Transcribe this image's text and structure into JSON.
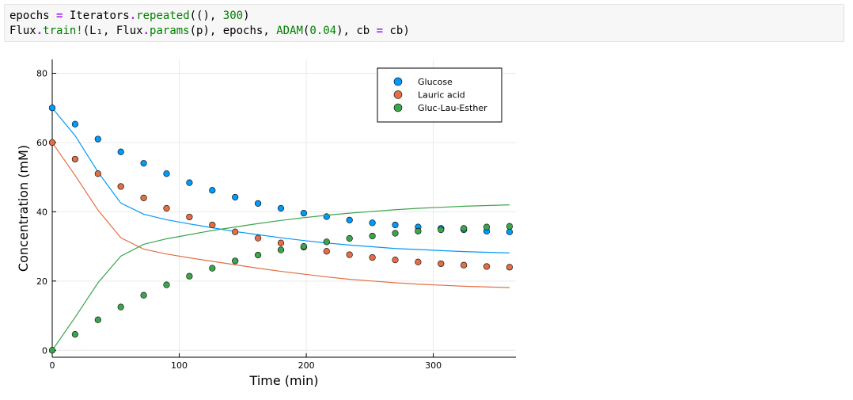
{
  "code_cell": {
    "lines": [
      [
        {
          "t": "epochs ",
          "c": ""
        },
        {
          "t": "=",
          "c": "tok-op"
        },
        {
          "t": " Iterators",
          "c": ""
        },
        {
          "t": ".",
          "c": "tok-op"
        },
        {
          "t": "repeated",
          "c": "tok-fn"
        },
        {
          "t": "((), ",
          "c": ""
        },
        {
          "t": "300",
          "c": "tok-num"
        },
        {
          "t": ")",
          "c": ""
        }
      ],
      [
        {
          "t": "Flux",
          "c": ""
        },
        {
          "t": ".",
          "c": "tok-op"
        },
        {
          "t": "train!",
          "c": "tok-fn"
        },
        {
          "t": "(L₁, Flux",
          "c": ""
        },
        {
          "t": ".",
          "c": "tok-op"
        },
        {
          "t": "params",
          "c": "tok-fn"
        },
        {
          "t": "(p), epochs, ",
          "c": ""
        },
        {
          "t": "ADAM",
          "c": "tok-fn"
        },
        {
          "t": "(",
          "c": ""
        },
        {
          "t": "0.04",
          "c": "tok-num"
        },
        {
          "t": "), cb ",
          "c": ""
        },
        {
          "t": "=",
          "c": "tok-op"
        },
        {
          "t": " cb)",
          "c": ""
        }
      ]
    ]
  },
  "chart_data": {
    "type": "scatter",
    "title": "",
    "xlabel": "Time (min)",
    "ylabel": "Concentration (mM)",
    "xlim": [
      0,
      365
    ],
    "ylim": [
      -2,
      84
    ],
    "xticks": [
      0,
      100,
      200,
      300
    ],
    "yticks": [
      0,
      20,
      40,
      60,
      80
    ],
    "grid": true,
    "legend_position": "top-right",
    "series": [
      {
        "name": "Glucose",
        "color": "#009af9",
        "points": {
          "x": [
            0,
            18,
            36,
            54,
            72,
            90,
            108,
            126,
            144,
            162,
            180,
            198,
            216,
            234,
            252,
            270,
            288,
            306,
            324,
            342,
            360
          ],
          "y": [
            70,
            65.3,
            61,
            57.3,
            54,
            51,
            48.4,
            46.2,
            44.2,
            42.4,
            41,
            39.6,
            38.6,
            37.6,
            36.8,
            36.2,
            35.6,
            35.2,
            34.8,
            34.4,
            34.2
          ]
        },
        "line": {
          "x": [
            0,
            18,
            36,
            54,
            72,
            90,
            108,
            126,
            144,
            162,
            180,
            198,
            216,
            234,
            252,
            270,
            288,
            306,
            324,
            342,
            360
          ],
          "y": [
            70,
            62,
            51.5,
            42.5,
            39.3,
            37.7,
            36.5,
            35.4,
            34.3,
            33.4,
            32.5,
            31.7,
            31,
            30.4,
            29.9,
            29.4,
            29.1,
            28.8,
            28.5,
            28.3,
            28.1
          ]
        }
      },
      {
        "name": "Lauric acid",
        "color": "#e26f46",
        "points": {
          "x": [
            0,
            18,
            36,
            54,
            72,
            90,
            108,
            126,
            144,
            162,
            180,
            198,
            216,
            234,
            252,
            270,
            288,
            306,
            324,
            342,
            360
          ],
          "y": [
            60,
            55.2,
            51,
            47.3,
            44,
            41,
            38.5,
            36.2,
            34.2,
            32.4,
            31,
            29.8,
            28.6,
            27.6,
            26.8,
            26.1,
            25.5,
            25,
            24.6,
            24.2,
            24
          ]
        },
        "line": {
          "x": [
            0,
            18,
            36,
            54,
            72,
            90,
            108,
            126,
            144,
            162,
            180,
            198,
            216,
            234,
            252,
            270,
            288,
            306,
            324,
            342,
            360
          ],
          "y": [
            60,
            50.5,
            40.5,
            32.5,
            29.2,
            27.8,
            26.7,
            25.7,
            24.7,
            23.7,
            22.8,
            22,
            21.2,
            20.5,
            20,
            19.5,
            19.1,
            18.8,
            18.5,
            18.3,
            18.1
          ]
        }
      },
      {
        "name": "Gluc-Lau-Esther",
        "color": "#3da44d",
        "points": {
          "x": [
            0,
            18,
            36,
            54,
            72,
            90,
            108,
            126,
            144,
            162,
            180,
            198,
            216,
            234,
            252,
            270,
            288,
            306,
            324,
            342,
            360
          ],
          "y": [
            0,
            4.6,
            8.8,
            12.5,
            15.9,
            18.9,
            21.4,
            23.7,
            25.8,
            27.5,
            29,
            30,
            31.3,
            32.3,
            33,
            33.8,
            34.4,
            34.8,
            35.2,
            35.6,
            35.8
          ]
        },
        "line": {
          "x": [
            0,
            18,
            36,
            54,
            72,
            90,
            108,
            126,
            144,
            162,
            180,
            198,
            216,
            234,
            252,
            270,
            288,
            306,
            324,
            342,
            360
          ],
          "y": [
            0,
            9.5,
            19.5,
            27.2,
            30.6,
            32.2,
            33.4,
            34.6,
            35.6,
            36.6,
            37.5,
            38.3,
            39,
            39.6,
            40.1,
            40.6,
            41,
            41.3,
            41.6,
            41.8,
            42
          ]
        }
      }
    ]
  }
}
